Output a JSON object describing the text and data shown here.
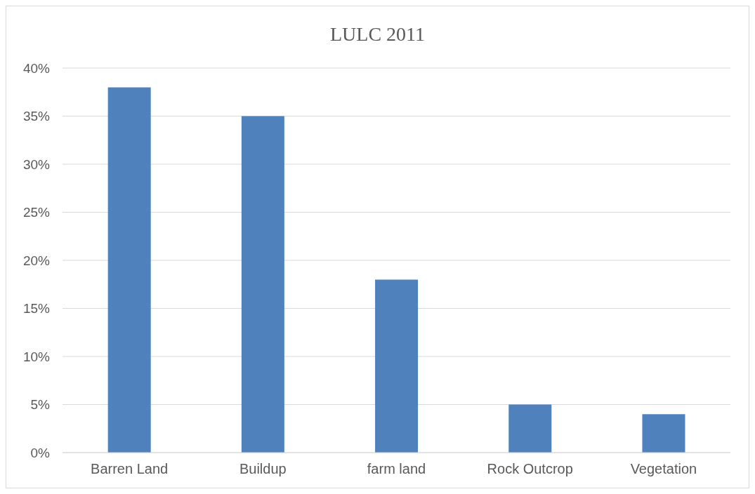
{
  "chart_data": {
    "type": "bar",
    "title": "LULC 2011",
    "categories": [
      "Barren Land",
      "Buildup",
      "farm land",
      "Rock Outcrop",
      "Vegetation"
    ],
    "values": [
      38,
      35,
      18,
      5,
      4
    ],
    "color": "#4f81bd",
    "ylim": [
      0,
      40
    ],
    "yticks": [
      {
        "value": 0,
        "label": "0%"
      },
      {
        "value": 5,
        "label": "5%"
      },
      {
        "value": 10,
        "label": "10%"
      },
      {
        "value": 15,
        "label": "15%"
      },
      {
        "value": 20,
        "label": "20%"
      },
      {
        "value": 25,
        "label": "25%"
      },
      {
        "value": 30,
        "label": "30%"
      },
      {
        "value": 35,
        "label": "35%"
      },
      {
        "value": 40,
        "label": "40%"
      }
    ],
    "grid": "y",
    "legend": false
  }
}
